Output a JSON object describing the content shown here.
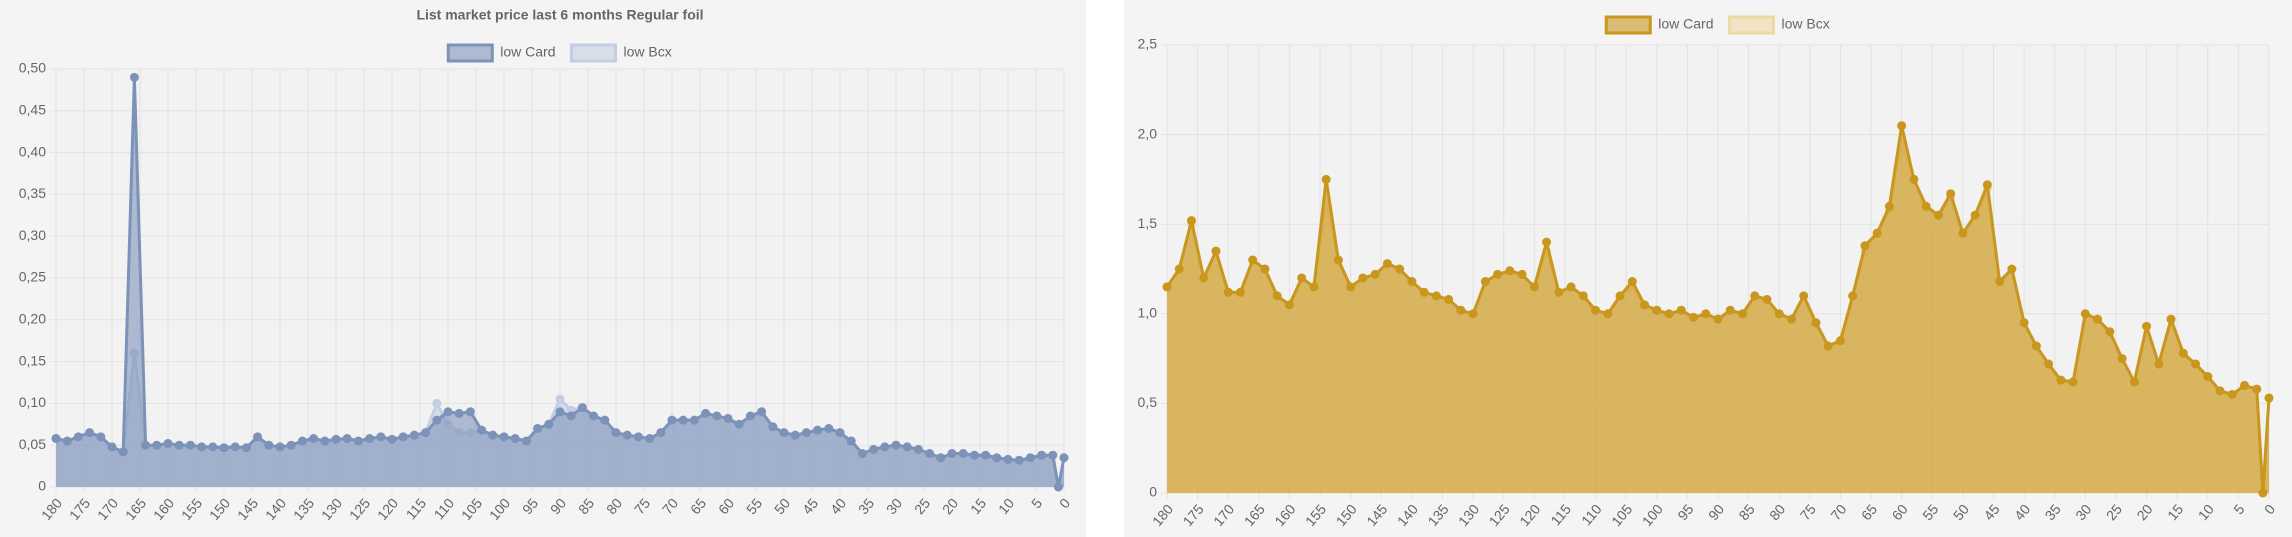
{
  "chart_data": [
    {
      "type": "line",
      "title": "List market price last 6 months Regular foil",
      "x": [
        180,
        178,
        176,
        174,
        172,
        170,
        168,
        166,
        164,
        162,
        160,
        158,
        156,
        154,
        152,
        150,
        148,
        146,
        144,
        142,
        140,
        138,
        136,
        134,
        132,
        130,
        128,
        126,
        124,
        122,
        120,
        118,
        116,
        114,
        112,
        110,
        108,
        106,
        104,
        102,
        100,
        98,
        96,
        94,
        92,
        90,
        88,
        86,
        84,
        82,
        80,
        78,
        76,
        74,
        72,
        70,
        68,
        66,
        64,
        62,
        60,
        58,
        56,
        54,
        52,
        50,
        48,
        46,
        44,
        42,
        40,
        38,
        36,
        34,
        32,
        30,
        28,
        26,
        24,
        22,
        20,
        18,
        16,
        14,
        12,
        10,
        8,
        6,
        4,
        2,
        1,
        0
      ],
      "xlim": [
        180,
        0
      ],
      "xticks": [
        180,
        175,
        170,
        165,
        160,
        155,
        150,
        145,
        140,
        135,
        130,
        125,
        120,
        115,
        110,
        105,
        100,
        95,
        90,
        85,
        80,
        75,
        70,
        65,
        60,
        55,
        50,
        45,
        40,
        35,
        30,
        25,
        20,
        15,
        10,
        5,
        0
      ],
      "ylim": [
        0,
        0.5
      ],
      "yticks": [
        0,
        {
          "value": 0.05,
          "label": "0,05"
        },
        {
          "value": 0.1,
          "label": "0,10"
        },
        {
          "value": 0.15,
          "label": "0,15"
        },
        {
          "value": 0.2,
          "label": "0,20"
        },
        {
          "value": 0.25,
          "label": "0,25"
        },
        {
          "value": 0.3,
          "label": "0,30"
        },
        {
          "value": 0.35,
          "label": "0,35"
        },
        {
          "value": 0.4,
          "label": "0,40"
        },
        {
          "value": 0.45,
          "label": "0,45"
        },
        {
          "value": 0.5,
          "label": "0,50"
        }
      ],
      "grid": true,
      "legend": "top",
      "series": [
        {
          "name": "low Card",
          "color": "#7d92b9",
          "values": [
            0.058,
            0.055,
            0.06,
            0.065,
            0.06,
            0.048,
            0.042,
            0.49,
            0.05,
            0.05,
            0.052,
            0.05,
            0.05,
            0.048,
            0.048,
            0.047,
            0.048,
            0.047,
            0.06,
            0.05,
            0.048,
            0.05,
            0.055,
            0.058,
            0.055,
            0.057,
            0.058,
            0.055,
            0.058,
            0.06,
            0.057,
            0.06,
            0.062,
            0.065,
            0.08,
            0.09,
            0.088,
            0.09,
            0.068,
            0.062,
            0.06,
            0.058,
            0.055,
            0.07,
            0.075,
            0.09,
            0.085,
            0.095,
            0.085,
            0.08,
            0.065,
            0.062,
            0.06,
            0.058,
            0.065,
            0.08,
            0.08,
            0.08,
            0.088,
            0.085,
            0.082,
            0.075,
            0.085,
            0.09,
            0.072,
            0.065,
            0.062,
            0.065,
            0.068,
            0.07,
            0.065,
            0.055,
            0.04,
            0.045,
            0.048,
            0.05,
            0.048,
            0.045,
            0.04,
            0.035,
            0.04,
            0.04,
            0.038,
            0.038,
            0.035,
            0.033,
            0.032,
            0.035,
            0.038,
            0.038,
            0,
            0.035
          ]
        },
        {
          "name": "low Bcx",
          "color": "#c3cee3",
          "values": [
            0.058,
            0.055,
            0.06,
            0.065,
            0.06,
            0.048,
            0.042,
            0.16,
            0.05,
            0.05,
            0.052,
            0.05,
            0.05,
            0.048,
            0.048,
            0.047,
            0.048,
            0.047,
            0.06,
            0.05,
            0.048,
            0.05,
            0.055,
            0.058,
            0.055,
            0.057,
            0.058,
            0.055,
            0.058,
            0.06,
            0.057,
            0.06,
            0.062,
            0.065,
            0.1,
            0.075,
            0.065,
            0.065,
            0.068,
            0.062,
            0.06,
            0.058,
            0.055,
            0.07,
            0.075,
            0.105,
            0.092,
            0.095,
            0.085,
            0.08,
            0.065,
            0.062,
            0.06,
            0.058,
            0.065,
            0.08,
            0.08,
            0.08,
            0.088,
            0.085,
            0.082,
            0.075,
            0.085,
            0.09,
            0.072,
            0.065,
            0.062,
            0.065,
            0.068,
            0.07,
            0.065,
            0.055,
            0.04,
            0.045,
            0.048,
            0.05,
            0.048,
            0.045,
            0.04,
            0.035,
            0.04,
            0.04,
            0.038,
            0.038,
            0.035,
            0.033,
            0.032,
            0.035,
            0.038,
            0.038,
            0,
            0.035
          ]
        }
      ]
    },
    {
      "type": "line",
      "x": [
        180,
        178,
        176,
        174,
        172,
        170,
        168,
        166,
        164,
        162,
        160,
        158,
        156,
        154,
        152,
        150,
        148,
        146,
        144,
        142,
        140,
        138,
        136,
        134,
        132,
        130,
        128,
        126,
        124,
        122,
        120,
        118,
        116,
        114,
        112,
        110,
        108,
        106,
        104,
        102,
        100,
        98,
        96,
        94,
        92,
        90,
        88,
        86,
        84,
        82,
        80,
        78,
        76,
        74,
        72,
        70,
        68,
        66,
        64,
        62,
        60,
        58,
        56,
        54,
        52,
        50,
        48,
        46,
        44,
        42,
        40,
        38,
        36,
        34,
        32,
        30,
        28,
        26,
        24,
        22,
        20,
        18,
        16,
        14,
        12,
        10,
        8,
        6,
        4,
        2,
        1,
        0
      ],
      "xlim": [
        180,
        0
      ],
      "xticks": [
        180,
        175,
        170,
        165,
        160,
        155,
        150,
        145,
        140,
        135,
        130,
        125,
        120,
        115,
        110,
        105,
        100,
        95,
        90,
        85,
        80,
        75,
        70,
        65,
        60,
        55,
        50,
        45,
        40,
        35,
        30,
        25,
        20,
        15,
        10,
        5,
        0
      ],
      "ylim": [
        0,
        2.5
      ],
      "yticks": [
        0,
        {
          "value": 0.5,
          "label": "0,5"
        },
        {
          "value": 1,
          "label": "1,0"
        },
        {
          "value": 1.5,
          "label": "1,5"
        },
        {
          "value": 2,
          "label": "2,0"
        },
        {
          "value": 2.5,
          "label": "2,5"
        }
      ],
      "grid": true,
      "legend": "top",
      "series": [
        {
          "name": "low Card",
          "color": "#c9961e",
          "values": [
            1.15,
            1.25,
            1.52,
            1.2,
            1.35,
            1.12,
            1.12,
            1.3,
            1.25,
            1.1,
            1.05,
            1.2,
            1.15,
            1.75,
            1.3,
            1.15,
            1.2,
            1.22,
            1.28,
            1.25,
            1.18,
            1.12,
            1.1,
            1.08,
            1.02,
            1.0,
            1.18,
            1.22,
            1.24,
            1.22,
            1.15,
            1.4,
            1.12,
            1.15,
            1.1,
            1.02,
            1.0,
            1.1,
            1.18,
            1.05,
            1.02,
            1.0,
            1.02,
            0.98,
            1.0,
            0.97,
            1.02,
            1.0,
            1.1,
            1.08,
            1.0,
            0.97,
            1.1,
            0.95,
            0.82,
            0.85,
            1.1,
            1.38,
            1.45,
            1.6,
            2.05,
            1.75,
            1.6,
            1.55,
            1.67,
            1.45,
            1.55,
            1.72,
            1.18,
            1.25,
            0.95,
            0.82,
            0.72,
            0.63,
            0.62,
            1.0,
            0.97,
            0.9,
            0.75,
            0.62,
            0.93,
            0.72,
            0.97,
            0.78,
            0.72,
            0.65,
            0.57,
            0.55,
            0.6,
            0.58,
            0,
            0.53
          ]
        },
        {
          "name": "low Bcx",
          "color": "#ecd9a4",
          "values": [
            1.15,
            1.25,
            1.5,
            1.2,
            1.35,
            1.12,
            1.12,
            1.3,
            1.25,
            1.1,
            1.05,
            1.2,
            1.15,
            1.62,
            1.3,
            1.15,
            1.2,
            1.22,
            1.28,
            1.25,
            1.18,
            1.12,
            1.1,
            1.08,
            1.02,
            1.0,
            1.18,
            1.22,
            1.24,
            1.22,
            1.15,
            1.35,
            1.12,
            1.15,
            1.1,
            1.02,
            1.0,
            1.1,
            1.15,
            1.05,
            1.02,
            1.0,
            1.02,
            0.98,
            1.0,
            0.97,
            1.02,
            1.0,
            1.1,
            1.08,
            1.0,
            0.97,
            1.1,
            0.95,
            0.82,
            0.85,
            1.1,
            1.35,
            1.45,
            1.58,
            1.95,
            1.75,
            1.6,
            1.55,
            1.65,
            1.45,
            1.55,
            1.7,
            1.18,
            1.25,
            0.95,
            0.82,
            0.72,
            0.63,
            0.62,
            1.0,
            0.97,
            0.9,
            0.75,
            0.62,
            0.93,
            0.72,
            0.97,
            0.78,
            0.72,
            0.65,
            0.57,
            0.55,
            0.6,
            0.58,
            0,
            0.53
          ]
        }
      ]
    }
  ]
}
